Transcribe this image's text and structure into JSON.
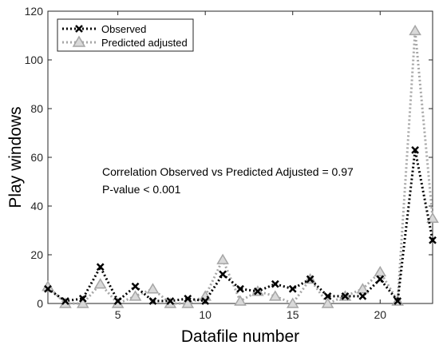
{
  "chart_data": {
    "type": "line",
    "xlabel": "Datafile number",
    "ylabel": "Play windows",
    "xlim": [
      1,
      23
    ],
    "ylim": [
      0,
      120
    ],
    "xticks": [
      5,
      10,
      15,
      20
    ],
    "yticks": [
      0,
      20,
      40,
      60,
      80,
      100,
      120
    ],
    "grid": false,
    "legend_position": "top-left",
    "x": [
      1,
      2,
      3,
      4,
      5,
      6,
      7,
      8,
      9,
      10,
      11,
      12,
      13,
      14,
      15,
      16,
      17,
      18,
      19,
      20,
      21,
      22,
      23
    ],
    "series": [
      {
        "name": "Observed",
        "color": "#000000",
        "marker": "x",
        "line": "dotted",
        "values": [
          6,
          1,
          2,
          15,
          1,
          7,
          1,
          1,
          2,
          1,
          12,
          6,
          5,
          8,
          6,
          10,
          3,
          3,
          3,
          10,
          1,
          63,
          26
        ]
      },
      {
        "name": "Predicted adjusted",
        "color": "#a6a6a6",
        "marker": "triangle",
        "line": "dotted",
        "values": [
          7,
          0,
          0,
          8,
          0,
          3,
          6,
          0,
          0,
          3,
          18,
          1,
          5,
          3,
          0,
          10,
          0,
          3,
          6,
          13,
          1,
          112,
          35
        ]
      }
    ],
    "annotations": [
      "Correlation Observed vs Predicted Adjusted = 0.97",
      "P-value < 0.001"
    ]
  }
}
